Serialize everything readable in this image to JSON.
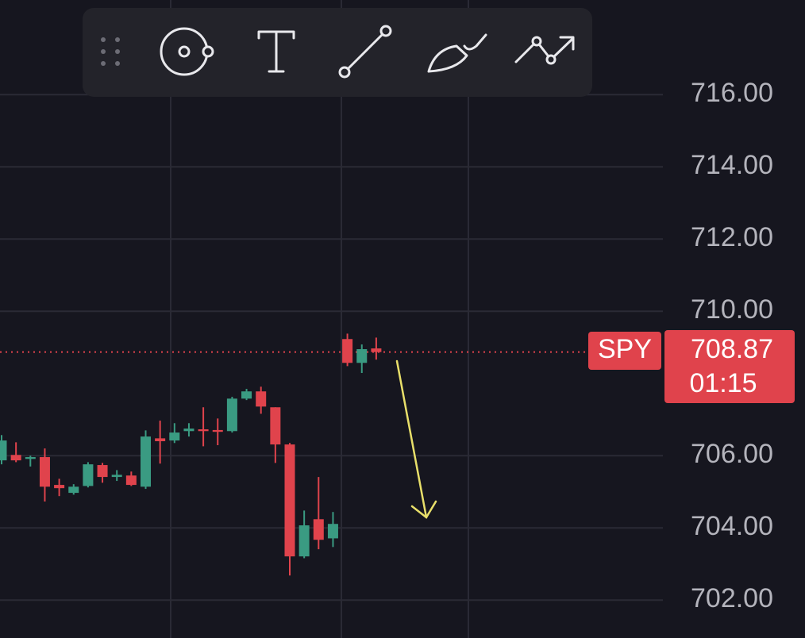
{
  "chart_data": {
    "type": "candlestick",
    "symbol": "SPY",
    "last_price": 708.87,
    "countdown": "01:15",
    "up_color": "#3a9b82",
    "down_color": "#e0434c",
    "open": [
      705.87,
      706.02,
      705.91,
      705.96,
      705.19,
      704.97,
      705.16,
      705.74,
      705.41,
      705.45,
      705.14,
      706.48,
      706.42,
      706.68,
      706.73,
      706.71,
      706.68,
      707.58,
      707.78,
      707.34,
      706.31,
      703.21,
      704.24,
      703.71,
      709.23,
      708.57,
      708.97
    ],
    "high": [
      706.57,
      706.37,
      706.0,
      706.2,
      705.36,
      705.21,
      705.82,
      705.8,
      705.6,
      705.56,
      706.7,
      706.97,
      706.9,
      706.9,
      707.34,
      707.03,
      707.63,
      707.85,
      707.91,
      707.34,
      706.35,
      704.48,
      705.41,
      704.44,
      709.38,
      709.08,
      709.27
    ],
    "low": [
      705.76,
      705.82,
      705.7,
      704.73,
      704.88,
      704.92,
      705.12,
      705.25,
      705.3,
      705.16,
      705.08,
      705.78,
      706.35,
      706.53,
      706.26,
      706.29,
      706.64,
      707.54,
      707.16,
      705.8,
      702.68,
      703.16,
      703.41,
      703.47,
      708.48,
      708.29,
      708.66
    ],
    "close": [
      706.42,
      705.87,
      705.96,
      705.14,
      705.1,
      705.14,
      705.76,
      705.41,
      705.47,
      705.19,
      706.53,
      706.4,
      706.64,
      706.75,
      706.68,
      706.66,
      707.58,
      707.78,
      707.36,
      706.31,
      703.21,
      704.07,
      703.67,
      704.11,
      708.57,
      708.95,
      708.87
    ],
    "ylim": [
      700.95,
      718.62
    ],
    "yticks": [
      {
        "value": 702,
        "label": "702.00"
      },
      {
        "value": 704,
        "label": "704.00"
      },
      {
        "value": 706,
        "label": "706.00"
      },
      {
        "value": 710,
        "label": "710.00"
      },
      {
        "value": 712,
        "label": "712.00"
      },
      {
        "value": 714,
        "label": "714.00"
      },
      {
        "value": 716,
        "label": "716.00"
      }
    ],
    "grid": true
  }
}
